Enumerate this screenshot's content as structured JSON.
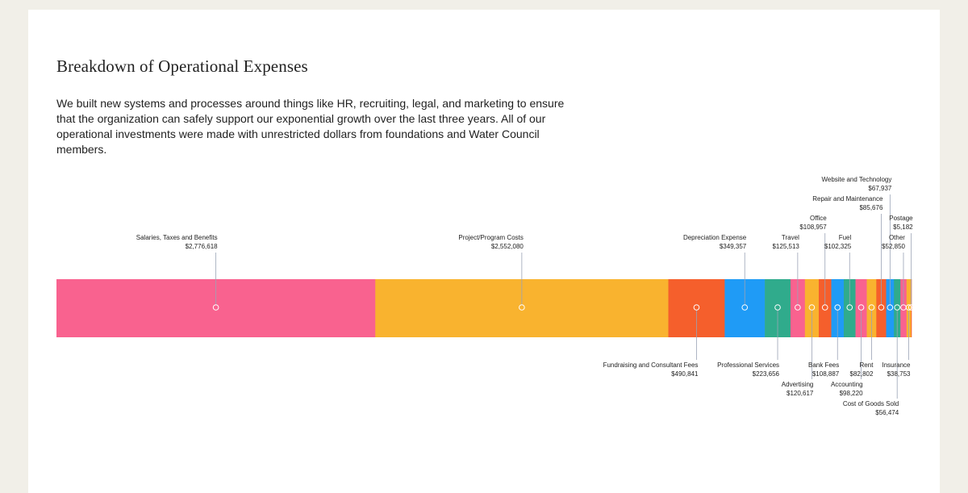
{
  "section": {
    "title": "Breakdown of Operational Expenses",
    "description": "We built new systems and processes around things like HR, recruiting, legal, and marketing to ensure that the organization can safely support our exponential growth over the last three years. All of our operational investments were made with unrestricted dollars from foundations and Water Council members."
  },
  "chart_data": {
    "type": "bar",
    "orientation": "horizontal-stacked",
    "categories": [
      "Salaries, Taxes and Benefits",
      "Project/Program Costs",
      "Fundraising and Consultant Fees",
      "Depreciation Expense",
      "Professional Services",
      "Travel",
      "Advertising",
      "Office",
      "Bank Fees",
      "Fuel",
      "Accounting",
      "Rent",
      "Repair and Maintenance",
      "Website and Technology",
      "Cost of Goods Sold",
      "Other",
      "Insurance",
      "Postage"
    ],
    "values": [
      2776618,
      2552080,
      490841,
      349357,
      223656,
      125513,
      120617,
      108957,
      108887,
      102325,
      98220,
      82802,
      85676,
      67937,
      56474,
      52850,
      38753,
      5182
    ],
    "value_labels": [
      "$2,776,618",
      "$2,552,080",
      "$490,841",
      "$349,357",
      "$223,656",
      "$125,513",
      "$120,617",
      "$108,957",
      "$108,887",
      "$102,325",
      "$98,220",
      "$82,802",
      "$85,676",
      "$67,937",
      "$56,474",
      "$52,850",
      "$38,753",
      "$5,182"
    ],
    "colors": [
      "#f9628f",
      "#f9b32f",
      "#f55f2c",
      "#1f9bf6",
      "#30ab8c",
      "#f9628f",
      "#f9b32f",
      "#f55f2c",
      "#1f9bf6",
      "#30ab8c",
      "#f9628f",
      "#f9b32f",
      "#f55f2c",
      "#1f9bf6",
      "#30ab8c",
      "#f9628f",
      "#f9b32f",
      "#f55f2c"
    ],
    "label_side": [
      "top",
      "top",
      "bottom",
      "top",
      "bottom",
      "top",
      "bottom",
      "top",
      "bottom",
      "top",
      "bottom",
      "bottom",
      "top",
      "top",
      "bottom",
      "top",
      "bottom",
      "top"
    ],
    "grid": false,
    "legend": "none"
  }
}
